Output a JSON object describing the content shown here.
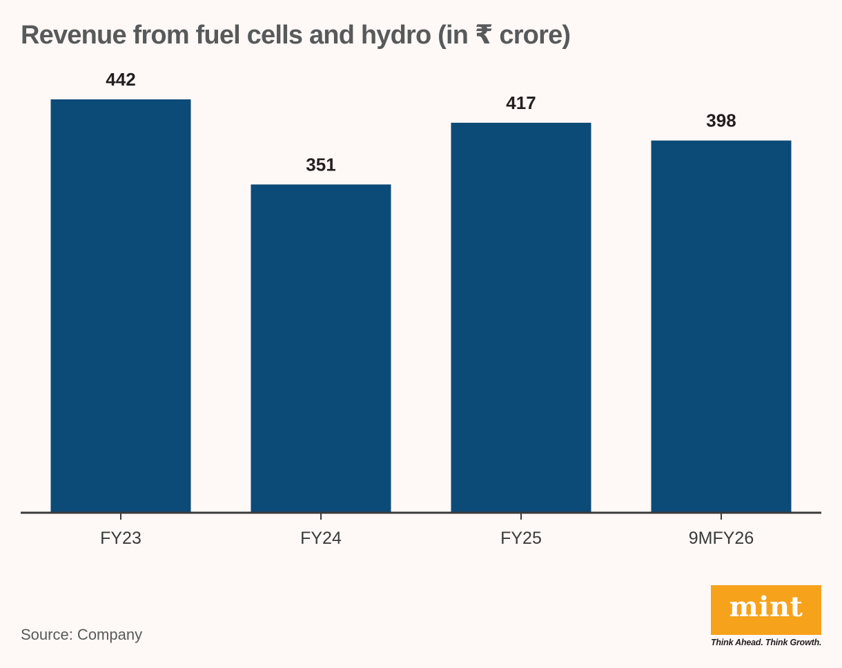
{
  "title": "Revenue from fuel cells and hydro (in ₹ crore)",
  "source": "Source: Company",
  "brand": {
    "logo_text": "mint",
    "tagline": "Think Ahead. Think Growth.",
    "color": "#f7a21b"
  },
  "colors": {
    "bar": "#0c4a78",
    "axis": "#3a3a3a",
    "label": "#231f20",
    "tick_label": "#3a3a3a",
    "background": "#fef8f6"
  },
  "chart_data": {
    "type": "bar",
    "title": "Revenue from fuel cells and hydro (in ₹ crore)",
    "categories": [
      "FY23",
      "FY24",
      "FY25",
      "9MFY26"
    ],
    "values": [
      442,
      351,
      417,
      398
    ],
    "value_labels": [
      "442",
      "351",
      "417",
      "398"
    ],
    "xlabel": "",
    "ylabel": "",
    "ylim": [
      0,
      442
    ],
    "grid": false,
    "legend": "none"
  }
}
